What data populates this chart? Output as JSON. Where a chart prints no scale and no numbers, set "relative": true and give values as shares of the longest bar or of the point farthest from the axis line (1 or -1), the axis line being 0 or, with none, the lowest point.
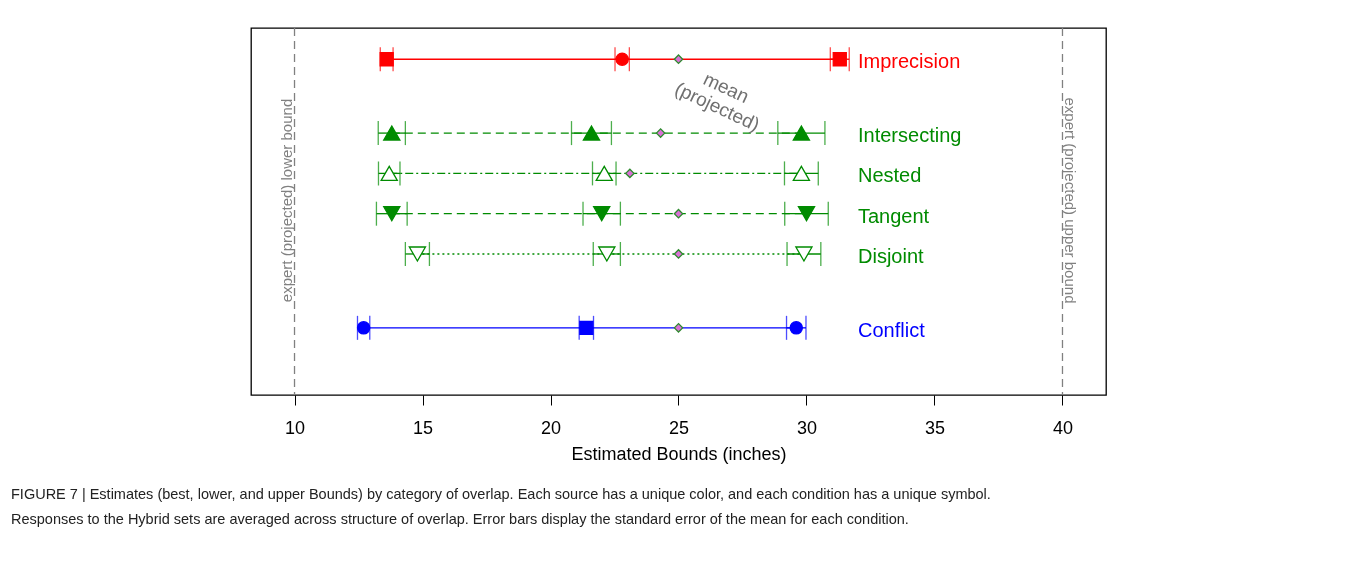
{
  "chart_data": {
    "type": "scatter",
    "relative": true,
    "xlabel": "Estimated Bounds (inches)",
    "xlim": [
      8.3,
      41.7
    ],
    "xticks": [
      10,
      15,
      20,
      25,
      30,
      35,
      40
    ],
    "grid": false,
    "ref_lines": [
      {
        "axis": "x",
        "value": 10,
        "label": "expert (projected) lower bound",
        "color": "#808080",
        "line_style": "dashed"
      },
      {
        "axis": "x",
        "value": 40,
        "label": "expert (projected) upper bound",
        "color": "#808080",
        "line_style": "dashed"
      }
    ],
    "annotations": [
      "mean\n(projected)",
      "FIGURE 7 | Estimates (best, lower, and upper Bounds) by category of overlap. Each source has a unique color, and each condition has a unique symbol.\nResponses to the Hybrid sets are averaged across structure of overlap. Error bars display the standard error of the mean for each condition."
    ],
    "series": [
      {
        "name": "Imprecision",
        "type": "line",
        "color": "#ff0000",
        "line_style": "solid",
        "x": [
          13.6,
          22.8,
          31.3
        ],
        "values": [
          1,
          1,
          1
        ]
      },
      {
        "color": "#ff0000",
        "marker": "square",
        "x": [
          13.6,
          31.3
        ],
        "values": [
          1,
          1
        ],
        "xerrors": [
          0.25,
          0.37
        ]
      },
      {
        "color": "#ff0000",
        "marker": "circle",
        "x": [
          22.8
        ],
        "values": [
          1
        ],
        "xerrors": [
          0.28
        ]
      },
      {
        "name": "Intersecting",
        "type": "line",
        "color": "#008b00",
        "line_style": "dashed",
        "x": [
          13.8,
          21.6,
          29.8
        ],
        "values": [
          0.78,
          0.78,
          0.78
        ]
      },
      {
        "color": "#008b00",
        "marker": "triangle",
        "x": [
          13.8,
          21.6,
          29.8
        ],
        "values": [
          0.78,
          0.78,
          0.78
        ],
        "xerrors": [
          0.53,
          0.78,
          0.92
        ]
      },
      {
        "name": "Nested",
        "type": "line",
        "color": "#008b00",
        "line_style": "dashdot",
        "x": [
          13.7,
          22.1,
          29.8
        ],
        "values": [
          0.66,
          0.66,
          0.66
        ]
      },
      {
        "color": "#008b00",
        "marker": "triangle-open",
        "x": [
          13.7,
          22.1,
          29.8
        ],
        "values": [
          0.66,
          0.66,
          0.66
        ],
        "xerrors": [
          0.42,
          0.46,
          0.66
        ]
      },
      {
        "name": "Tangent",
        "type": "line",
        "color": "#008b00",
        "line_style": "dashed",
        "x": [
          13.8,
          22.0,
          30.0
        ],
        "values": [
          0.54,
          0.54,
          0.54
        ]
      },
      {
        "color": "#008b00",
        "marker": "triangle-down",
        "x": [
          13.8,
          22.0,
          30.0
        ],
        "values": [
          0.54,
          0.54,
          0.54
        ],
        "xerrors": [
          0.6,
          0.73,
          0.85
        ]
      },
      {
        "name": "Disjoint",
        "type": "line",
        "color": "#008b00",
        "line_style": "dotted",
        "x": [
          14.8,
          22.2,
          29.9
        ],
        "values": [
          0.42,
          0.42,
          0.42
        ]
      },
      {
        "color": "#008b00",
        "marker": "triangle-down-open",
        "x": [
          14.8,
          22.2,
          29.9
        ],
        "values": [
          0.42,
          0.42,
          0.42
        ],
        "xerrors": [
          0.47,
          0.53,
          0.66
        ]
      },
      {
        "name": "Conflict",
        "type": "line",
        "color": "#0000ff",
        "line_style": "solid",
        "x": [
          12.7,
          21.4,
          29.6
        ],
        "values": [
          0.2,
          0.2,
          0.2
        ]
      },
      {
        "color": "#0000ff",
        "marker": "circle",
        "x": [
          12.7,
          29.6
        ],
        "values": [
          0.2,
          0.2
        ],
        "xerrors": [
          0.24,
          0.38
        ]
      },
      {
        "color": "#0000ff",
        "marker": "square",
        "x": [
          21.4
        ],
        "values": [
          0.2
        ],
        "xerrors": [
          0.28
        ]
      },
      {
        "color": "#da70d6",
        "marker": "diamond",
        "x": [
          25.0,
          24.3,
          23.1,
          25.0,
          25.0,
          25.0
        ],
        "values": [
          1,
          0.78,
          0.66,
          0.54,
          0.42,
          0.2
        ]
      }
    ]
  }
}
